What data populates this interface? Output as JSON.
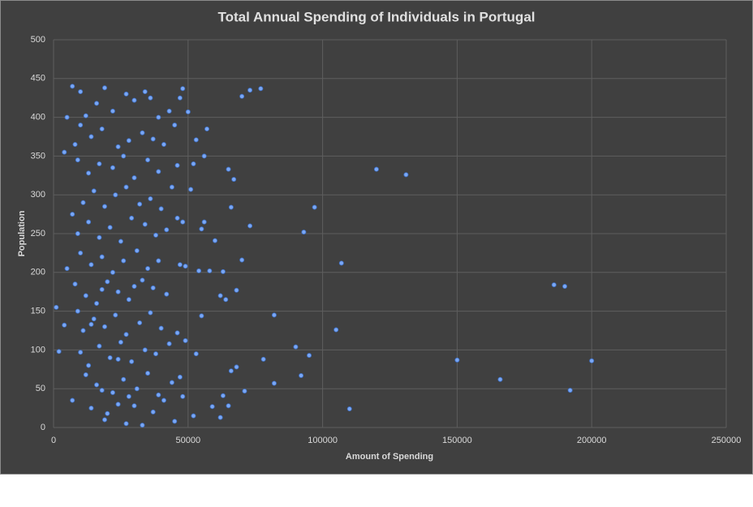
{
  "chart_data": {
    "type": "scatter",
    "title": "Total Annual Spending of Individuals in Portugal",
    "x_label": "Amount of Spending",
    "y_label": "Population",
    "color": "#7aa7f5",
    "grid": true,
    "xlim": [
      0,
      250000
    ],
    "xticks": [
      0,
      50000,
      100000,
      150000,
      200000,
      250000
    ],
    "ylim": [
      0,
      500
    ],
    "yticks": [
      0,
      50,
      100,
      150,
      200,
      250,
      300,
      350,
      400,
      450,
      500
    ],
    "x": [
      14000,
      19000,
      24000,
      27000,
      33000,
      37000,
      41000,
      45000,
      48000,
      52000,
      20000,
      30000,
      7000,
      12000,
      16000,
      22000,
      26000,
      31000,
      35000,
      39000,
      44000,
      47000,
      18000,
      28000,
      10000,
      13000,
      17000,
      21000,
      25000,
      29000,
      34000,
      38000,
      43000,
      49000,
      24000,
      9000,
      11000,
      15000,
      19000,
      23000,
      27000,
      32000,
      36000,
      40000,
      46000,
      14000,
      8000,
      12000,
      16000,
      20000,
      24000,
      28000,
      33000,
      37000,
      42000,
      18000,
      30000,
      5000,
      10000,
      14000,
      18000,
      22000,
      26000,
      31000,
      35000,
      39000,
      47000,
      49000,
      9000,
      13000,
      17000,
      21000,
      25000,
      29000,
      34000,
      38000,
      42000,
      46000,
      48000,
      7000,
      11000,
      15000,
      19000,
      23000,
      27000,
      32000,
      36000,
      44000,
      40000,
      4000,
      9000,
      13000,
      17000,
      22000,
      26000,
      30000,
      35000,
      39000,
      46000,
      8000,
      10000,
      14000,
      18000,
      24000,
      28000,
      33000,
      37000,
      45000,
      41000,
      7000,
      10000,
      12000,
      16000,
      19000,
      22000,
      27000,
      30000,
      34000,
      36000,
      39000,
      43000,
      47000,
      5000,
      1000,
      2000,
      4000,
      70000,
      73000,
      77000,
      120000,
      131000,
      97000,
      107000,
      93000,
      73000,
      70000,
      68000,
      82000,
      105000,
      90000,
      95000,
      78000,
      92000,
      82000,
      110000,
      150000,
      166000,
      186000,
      190000,
      192000,
      200000,
      65000,
      67000,
      66000,
      57000,
      56000,
      53000,
      52000,
      50000,
      48000,
      54000,
      63000,
      64000,
      66000,
      68000,
      71000,
      59000,
      62000,
      63000,
      55000,
      53000,
      65000,
      60000,
      56000,
      55000,
      51000,
      58000,
      62000
    ],
    "values": [
      25,
      10,
      30,
      5,
      3,
      20,
      35,
      8,
      40,
      15,
      18,
      28,
      35,
      68,
      55,
      45,
      62,
      50,
      70,
      42,
      58,
      65,
      48,
      40,
      97,
      80,
      105,
      90,
      110,
      85,
      100,
      95,
      108,
      112,
      88,
      150,
      125,
      140,
      130,
      145,
      120,
      135,
      148,
      128,
      122,
      133,
      185,
      170,
      160,
      188,
      175,
      165,
      190,
      180,
      172,
      178,
      182,
      205,
      225,
      210,
      220,
      200,
      215,
      228,
      205,
      215,
      210,
      208,
      250,
      265,
      245,
      258,
      240,
      270,
      262,
      248,
      255,
      270,
      265,
      275,
      290,
      305,
      285,
      300,
      310,
      288,
      295,
      310,
      282,
      355,
      345,
      328,
      340,
      335,
      350,
      322,
      345,
      330,
      338,
      365,
      390,
      375,
      385,
      362,
      370,
      380,
      372,
      390,
      365,
      440,
      433,
      402,
      418,
      438,
      408,
      430,
      422,
      433,
      425,
      400,
      408,
      425,
      400,
      155,
      98,
      132,
      427,
      435,
      437,
      333,
      326,
      284,
      212,
      252,
      260,
      216,
      177,
      145,
      126,
      104,
      93,
      88,
      67,
      57,
      24,
      87,
      62,
      184,
      182,
      48,
      86,
      333,
      320,
      284,
      385,
      350,
      371,
      340,
      407,
      437,
      202,
      201,
      165,
      73,
      78,
      47,
      27,
      13,
      41,
      144,
      95,
      28,
      241,
      265,
      256,
      307,
      202,
      170
    ]
  }
}
